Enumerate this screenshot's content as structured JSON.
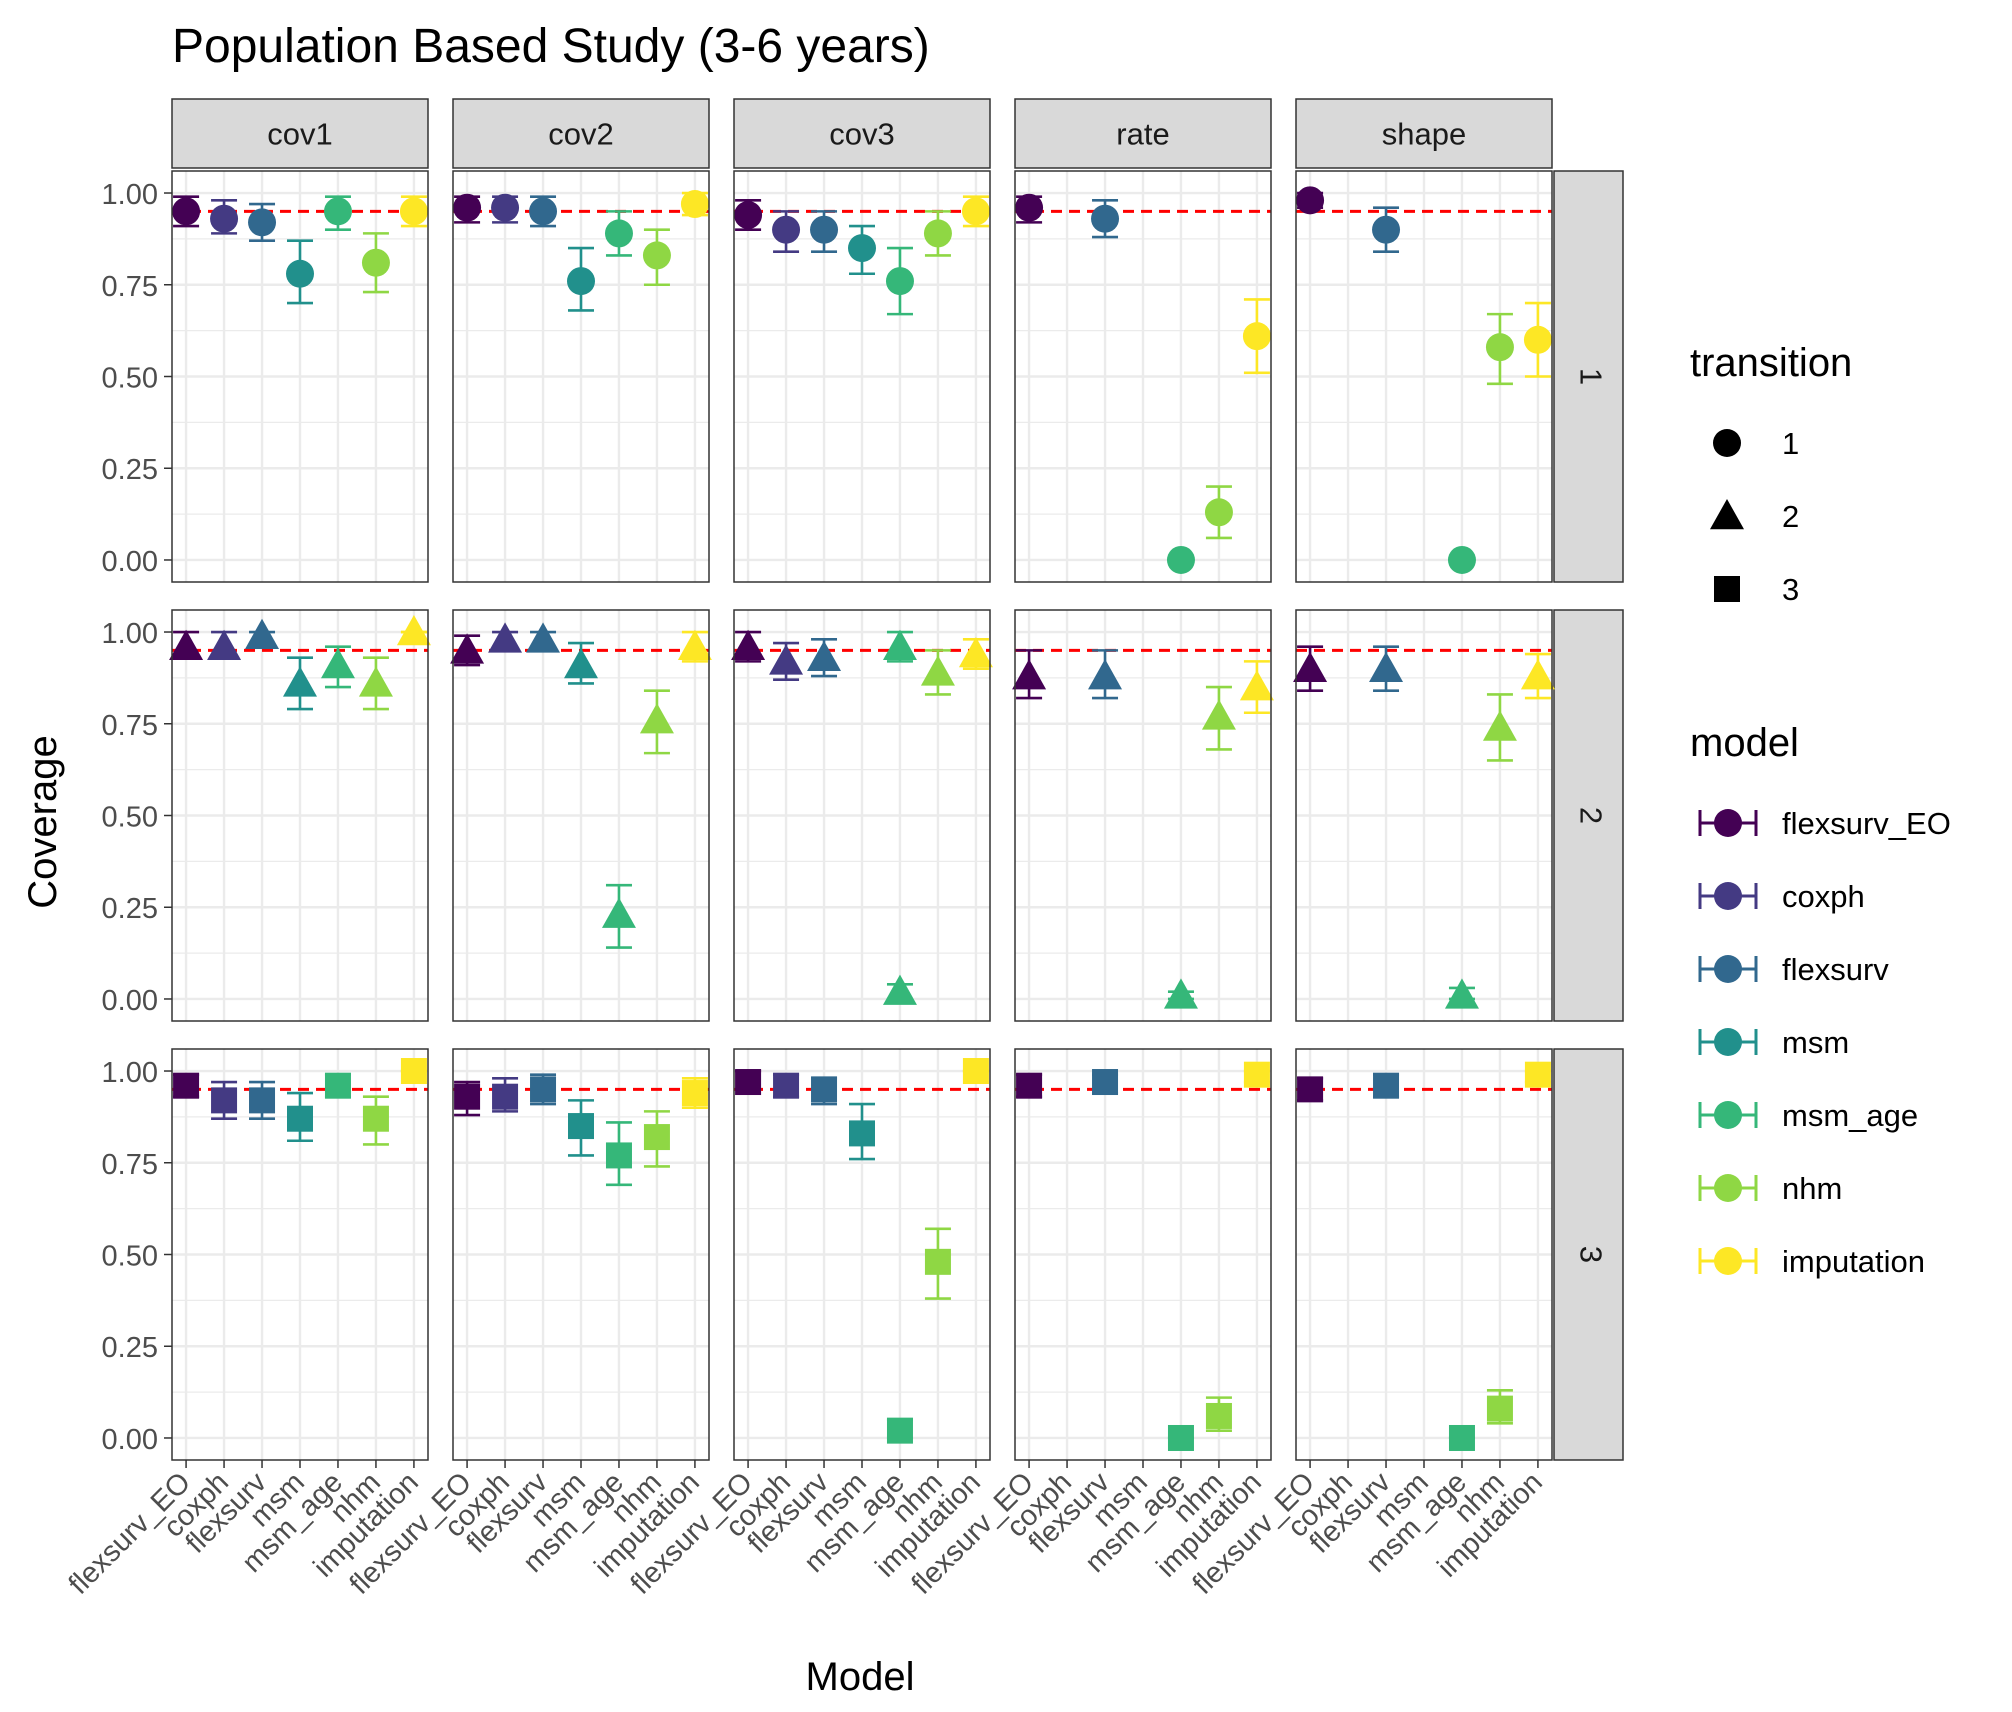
{
  "title": "Population Based Study (3-6 years)",
  "xlabel": "Model",
  "ylabel": "Coverage",
  "reference_line": {
    "value": 0.95,
    "color": "#ff0000",
    "style": "dashed"
  },
  "column_strips": [
    "cov1",
    "cov2",
    "cov3",
    "rate",
    "shape"
  ],
  "row_strips": [
    "1",
    "2",
    "3"
  ],
  "legend_transition": {
    "title": "transition",
    "items": [
      {
        "label": "1",
        "shape": "circle"
      },
      {
        "label": "2",
        "shape": "triangle"
      },
      {
        "label": "3",
        "shape": "square"
      }
    ]
  },
  "legend_model": {
    "title": "model",
    "items": [
      {
        "label": "flexsurv_EO",
        "color": "#440154"
      },
      {
        "label": "coxph",
        "color": "#443A83"
      },
      {
        "label": "flexsurv",
        "color": "#31688E"
      },
      {
        "label": "msm",
        "color": "#21908C"
      },
      {
        "label": "msm_age",
        "color": "#35B779"
      },
      {
        "label": "nhm",
        "color": "#8FD744"
      },
      {
        "label": "imputation",
        "color": "#FDE725"
      }
    ]
  },
  "chart_data": {
    "type": "scatter",
    "facet_layout": "grid",
    "categories": [
      "flexsurv_EO",
      "coxph",
      "flexsurv",
      "msm",
      "msm_age",
      "nhm",
      "imputation"
    ],
    "x_tick_labels": [
      "flexsurv_EO",
      "coxph",
      "flexsurv",
      "msm",
      "msm_age",
      "nhm",
      "imputation"
    ],
    "y_ticks": [
      0.0,
      0.25,
      0.5,
      0.75,
      1.0
    ],
    "y_tick_labels": [
      "0.00",
      "0.25",
      "0.50",
      "0.75",
      "1.00"
    ],
    "ylim": [
      -0.06,
      1.06
    ],
    "grid": true,
    "panels": [
      {
        "row": "1",
        "col": "cov1",
        "points": [
          {
            "model": "flexsurv_EO",
            "y": 0.95,
            "lo": 0.91,
            "hi": 0.99
          },
          {
            "model": "coxph",
            "y": 0.93,
            "lo": 0.89,
            "hi": 0.98
          },
          {
            "model": "flexsurv",
            "y": 0.92,
            "lo": 0.87,
            "hi": 0.97
          },
          {
            "model": "msm",
            "y": 0.78,
            "lo": 0.7,
            "hi": 0.87
          },
          {
            "model": "msm_age",
            "y": 0.95,
            "lo": 0.9,
            "hi": 0.99
          },
          {
            "model": "nhm",
            "y": 0.81,
            "lo": 0.73,
            "hi": 0.89
          },
          {
            "model": "imputation",
            "y": 0.95,
            "lo": 0.91,
            "hi": 0.99
          }
        ]
      },
      {
        "row": "1",
        "col": "cov2",
        "points": [
          {
            "model": "flexsurv_EO",
            "y": 0.96,
            "lo": 0.92,
            "hi": 0.99
          },
          {
            "model": "coxph",
            "y": 0.96,
            "lo": 0.92,
            "hi": 0.99
          },
          {
            "model": "flexsurv",
            "y": 0.95,
            "lo": 0.91,
            "hi": 0.99
          },
          {
            "model": "msm",
            "y": 0.76,
            "lo": 0.68,
            "hi": 0.85
          },
          {
            "model": "msm_age",
            "y": 0.89,
            "lo": 0.83,
            "hi": 0.95
          },
          {
            "model": "nhm",
            "y": 0.83,
            "lo": 0.75,
            "hi": 0.9
          },
          {
            "model": "imputation",
            "y": 0.97,
            "lo": 0.94,
            "hi": 1.0
          }
        ]
      },
      {
        "row": "1",
        "col": "cov3",
        "points": [
          {
            "model": "flexsurv_EO",
            "y": 0.94,
            "lo": 0.9,
            "hi": 0.98
          },
          {
            "model": "coxph",
            "y": 0.9,
            "lo": 0.84,
            "hi": 0.95
          },
          {
            "model": "flexsurv",
            "y": 0.9,
            "lo": 0.84,
            "hi": 0.95
          },
          {
            "model": "msm",
            "y": 0.85,
            "lo": 0.78,
            "hi": 0.91
          },
          {
            "model": "msm_age",
            "y": 0.76,
            "lo": 0.67,
            "hi": 0.85
          },
          {
            "model": "nhm",
            "y": 0.89,
            "lo": 0.83,
            "hi": 0.95
          },
          {
            "model": "imputation",
            "y": 0.95,
            "lo": 0.91,
            "hi": 0.99
          }
        ]
      },
      {
        "row": "1",
        "col": "rate",
        "points": [
          {
            "model": "flexsurv_EO",
            "y": 0.96,
            "lo": 0.92,
            "hi": 0.99
          },
          {
            "model": "flexsurv",
            "y": 0.93,
            "lo": 0.88,
            "hi": 0.98
          },
          {
            "model": "msm_age",
            "y": 0.0,
            "lo": 0.0,
            "hi": 0.0
          },
          {
            "model": "nhm",
            "y": 0.13,
            "lo": 0.06,
            "hi": 0.2
          },
          {
            "model": "imputation",
            "y": 0.61,
            "lo": 0.51,
            "hi": 0.71
          }
        ]
      },
      {
        "row": "1",
        "col": "shape",
        "points": [
          {
            "model": "flexsurv_EO",
            "y": 0.98,
            "lo": 0.96,
            "hi": 1.0
          },
          {
            "model": "flexsurv",
            "y": 0.9,
            "lo": 0.84,
            "hi": 0.96
          },
          {
            "model": "msm_age",
            "y": 0.0,
            "lo": 0.0,
            "hi": 0.0
          },
          {
            "model": "nhm",
            "y": 0.58,
            "lo": 0.48,
            "hi": 0.67
          },
          {
            "model": "imputation",
            "y": 0.6,
            "lo": 0.5,
            "hi": 0.7
          }
        ]
      },
      {
        "row": "2",
        "col": "cov1",
        "points": [
          {
            "model": "flexsurv_EO",
            "y": 0.96,
            "lo": 0.93,
            "hi": 1.0
          },
          {
            "model": "coxph",
            "y": 0.96,
            "lo": 0.93,
            "hi": 1.0
          },
          {
            "model": "flexsurv",
            "y": 0.99,
            "lo": 0.97,
            "hi": 1.0
          },
          {
            "model": "msm",
            "y": 0.86,
            "lo": 0.79,
            "hi": 0.93
          },
          {
            "model": "msm_age",
            "y": 0.91,
            "lo": 0.85,
            "hi": 0.96
          },
          {
            "model": "nhm",
            "y": 0.86,
            "lo": 0.79,
            "hi": 0.93
          },
          {
            "model": "imputation",
            "y": 1.0,
            "lo": 1.0,
            "hi": 1.0
          }
        ]
      },
      {
        "row": "2",
        "col": "cov2",
        "points": [
          {
            "model": "flexsurv_EO",
            "y": 0.95,
            "lo": 0.91,
            "hi": 0.99
          },
          {
            "model": "coxph",
            "y": 0.98,
            "lo": 0.95,
            "hi": 1.0
          },
          {
            "model": "flexsurv",
            "y": 0.98,
            "lo": 0.95,
            "hi": 1.0
          },
          {
            "model": "msm",
            "y": 0.91,
            "lo": 0.86,
            "hi": 0.97
          },
          {
            "model": "msm_age",
            "y": 0.23,
            "lo": 0.14,
            "hi": 0.31
          },
          {
            "model": "nhm",
            "y": 0.76,
            "lo": 0.67,
            "hi": 0.84
          },
          {
            "model": "imputation",
            "y": 0.96,
            "lo": 0.92,
            "hi": 1.0
          }
        ]
      },
      {
        "row": "2",
        "col": "cov3",
        "points": [
          {
            "model": "flexsurv_EO",
            "y": 0.96,
            "lo": 0.92,
            "hi": 1.0
          },
          {
            "model": "coxph",
            "y": 0.92,
            "lo": 0.87,
            "hi": 0.97
          },
          {
            "model": "flexsurv",
            "y": 0.93,
            "lo": 0.88,
            "hi": 0.98
          },
          {
            "model": "msm_age",
            "y": 0.96,
            "lo": 0.92,
            "hi": 1.0
          },
          {
            "model": "msm_age",
            "y": 0.02,
            "lo": 0.0,
            "hi": 0.04
          },
          {
            "model": "nhm",
            "y": 0.89,
            "lo": 0.83,
            "hi": 0.95
          },
          {
            "model": "imputation",
            "y": 0.94,
            "lo": 0.9,
            "hi": 0.98
          }
        ]
      },
      {
        "row": "2",
        "col": "rate",
        "points": [
          {
            "model": "flexsurv_EO",
            "y": 0.88,
            "lo": 0.82,
            "hi": 0.95
          },
          {
            "model": "flexsurv",
            "y": 0.88,
            "lo": 0.82,
            "hi": 0.95
          },
          {
            "model": "msm_age",
            "y": 0.01,
            "lo": 0.0,
            "hi": 0.02
          },
          {
            "model": "nhm",
            "y": 0.77,
            "lo": 0.68,
            "hi": 0.85
          },
          {
            "model": "imputation",
            "y": 0.85,
            "lo": 0.78,
            "hi": 0.92
          }
        ]
      },
      {
        "row": "2",
        "col": "shape",
        "points": [
          {
            "model": "flexsurv_EO",
            "y": 0.9,
            "lo": 0.84,
            "hi": 0.96
          },
          {
            "model": "flexsurv",
            "y": 0.9,
            "lo": 0.84,
            "hi": 0.96
          },
          {
            "model": "msm_age",
            "y": 0.01,
            "lo": 0.0,
            "hi": 0.03
          },
          {
            "model": "nhm",
            "y": 0.74,
            "lo": 0.65,
            "hi": 0.83
          },
          {
            "model": "imputation",
            "y": 0.88,
            "lo": 0.82,
            "hi": 0.94
          }
        ]
      },
      {
        "row": "3",
        "col": "cov1",
        "points": [
          {
            "model": "flexsurv_EO",
            "y": 0.96,
            "lo": 0.93,
            "hi": 0.99
          },
          {
            "model": "coxph",
            "y": 0.92,
            "lo": 0.87,
            "hi": 0.97
          },
          {
            "model": "flexsurv",
            "y": 0.92,
            "lo": 0.87,
            "hi": 0.97
          },
          {
            "model": "msm",
            "y": 0.87,
            "lo": 0.81,
            "hi": 0.94
          },
          {
            "model": "msm_age",
            "y": 0.96,
            "lo": 0.93,
            "hi": 0.99
          },
          {
            "model": "nhm",
            "y": 0.87,
            "lo": 0.8,
            "hi": 0.93
          },
          {
            "model": "imputation",
            "y": 1.0,
            "lo": 1.0,
            "hi": 1.0
          }
        ]
      },
      {
        "row": "3",
        "col": "cov2",
        "points": [
          {
            "model": "flexsurv_EO",
            "y": 0.93,
            "lo": 0.88,
            "hi": 0.97
          },
          {
            "model": "coxph",
            "y": 0.93,
            "lo": 0.89,
            "hi": 0.98
          },
          {
            "model": "flexsurv",
            "y": 0.95,
            "lo": 0.91,
            "hi": 0.99
          },
          {
            "model": "msm",
            "y": 0.85,
            "lo": 0.77,
            "hi": 0.92
          },
          {
            "model": "msm_age",
            "y": 0.77,
            "lo": 0.69,
            "hi": 0.86
          },
          {
            "model": "nhm",
            "y": 0.82,
            "lo": 0.74,
            "hi": 0.89
          },
          {
            "model": "imputation",
            "y": 0.94,
            "lo": 0.9,
            "hi": 0.98
          }
        ]
      },
      {
        "row": "3",
        "col": "cov3",
        "points": [
          {
            "model": "flexsurv_EO",
            "y": 0.97,
            "lo": 0.95,
            "hi": 1.0
          },
          {
            "model": "coxph",
            "y": 0.96,
            "lo": 0.93,
            "hi": 0.99
          },
          {
            "model": "flexsurv",
            "y": 0.95,
            "lo": 0.91,
            "hi": 0.98
          },
          {
            "model": "msm",
            "y": 0.83,
            "lo": 0.76,
            "hi": 0.91
          },
          {
            "model": "msm_age",
            "y": 0.02,
            "lo": 0.0,
            "hi": 0.05
          },
          {
            "model": "nhm",
            "y": 0.48,
            "lo": 0.38,
            "hi": 0.57
          },
          {
            "model": "imputation",
            "y": 1.0,
            "lo": 1.0,
            "hi": 1.0
          }
        ]
      },
      {
        "row": "3",
        "col": "rate",
        "points": [
          {
            "model": "flexsurv_EO",
            "y": 0.96,
            "lo": 0.93,
            "hi": 0.99
          },
          {
            "model": "flexsurv",
            "y": 0.97,
            "lo": 0.94,
            "hi": 0.99
          },
          {
            "model": "msm_age",
            "y": 0.0,
            "lo": 0.0,
            "hi": 0.0
          },
          {
            "model": "nhm",
            "y": 0.06,
            "lo": 0.02,
            "hi": 0.11
          },
          {
            "model": "imputation",
            "y": 0.99,
            "lo": 0.97,
            "hi": 1.0
          }
        ]
      },
      {
        "row": "3",
        "col": "shape",
        "points": [
          {
            "model": "flexsurv_EO",
            "y": 0.95,
            "lo": 0.92,
            "hi": 0.98
          },
          {
            "model": "flexsurv",
            "y": 0.96,
            "lo": 0.93,
            "hi": 0.99
          },
          {
            "model": "msm_age",
            "y": 0.0,
            "lo": 0.0,
            "hi": 0.0
          },
          {
            "model": "nhm",
            "y": 0.08,
            "lo": 0.04,
            "hi": 0.13
          },
          {
            "model": "imputation",
            "y": 0.99,
            "lo": 0.97,
            "hi": 1.0
          }
        ]
      }
    ]
  }
}
